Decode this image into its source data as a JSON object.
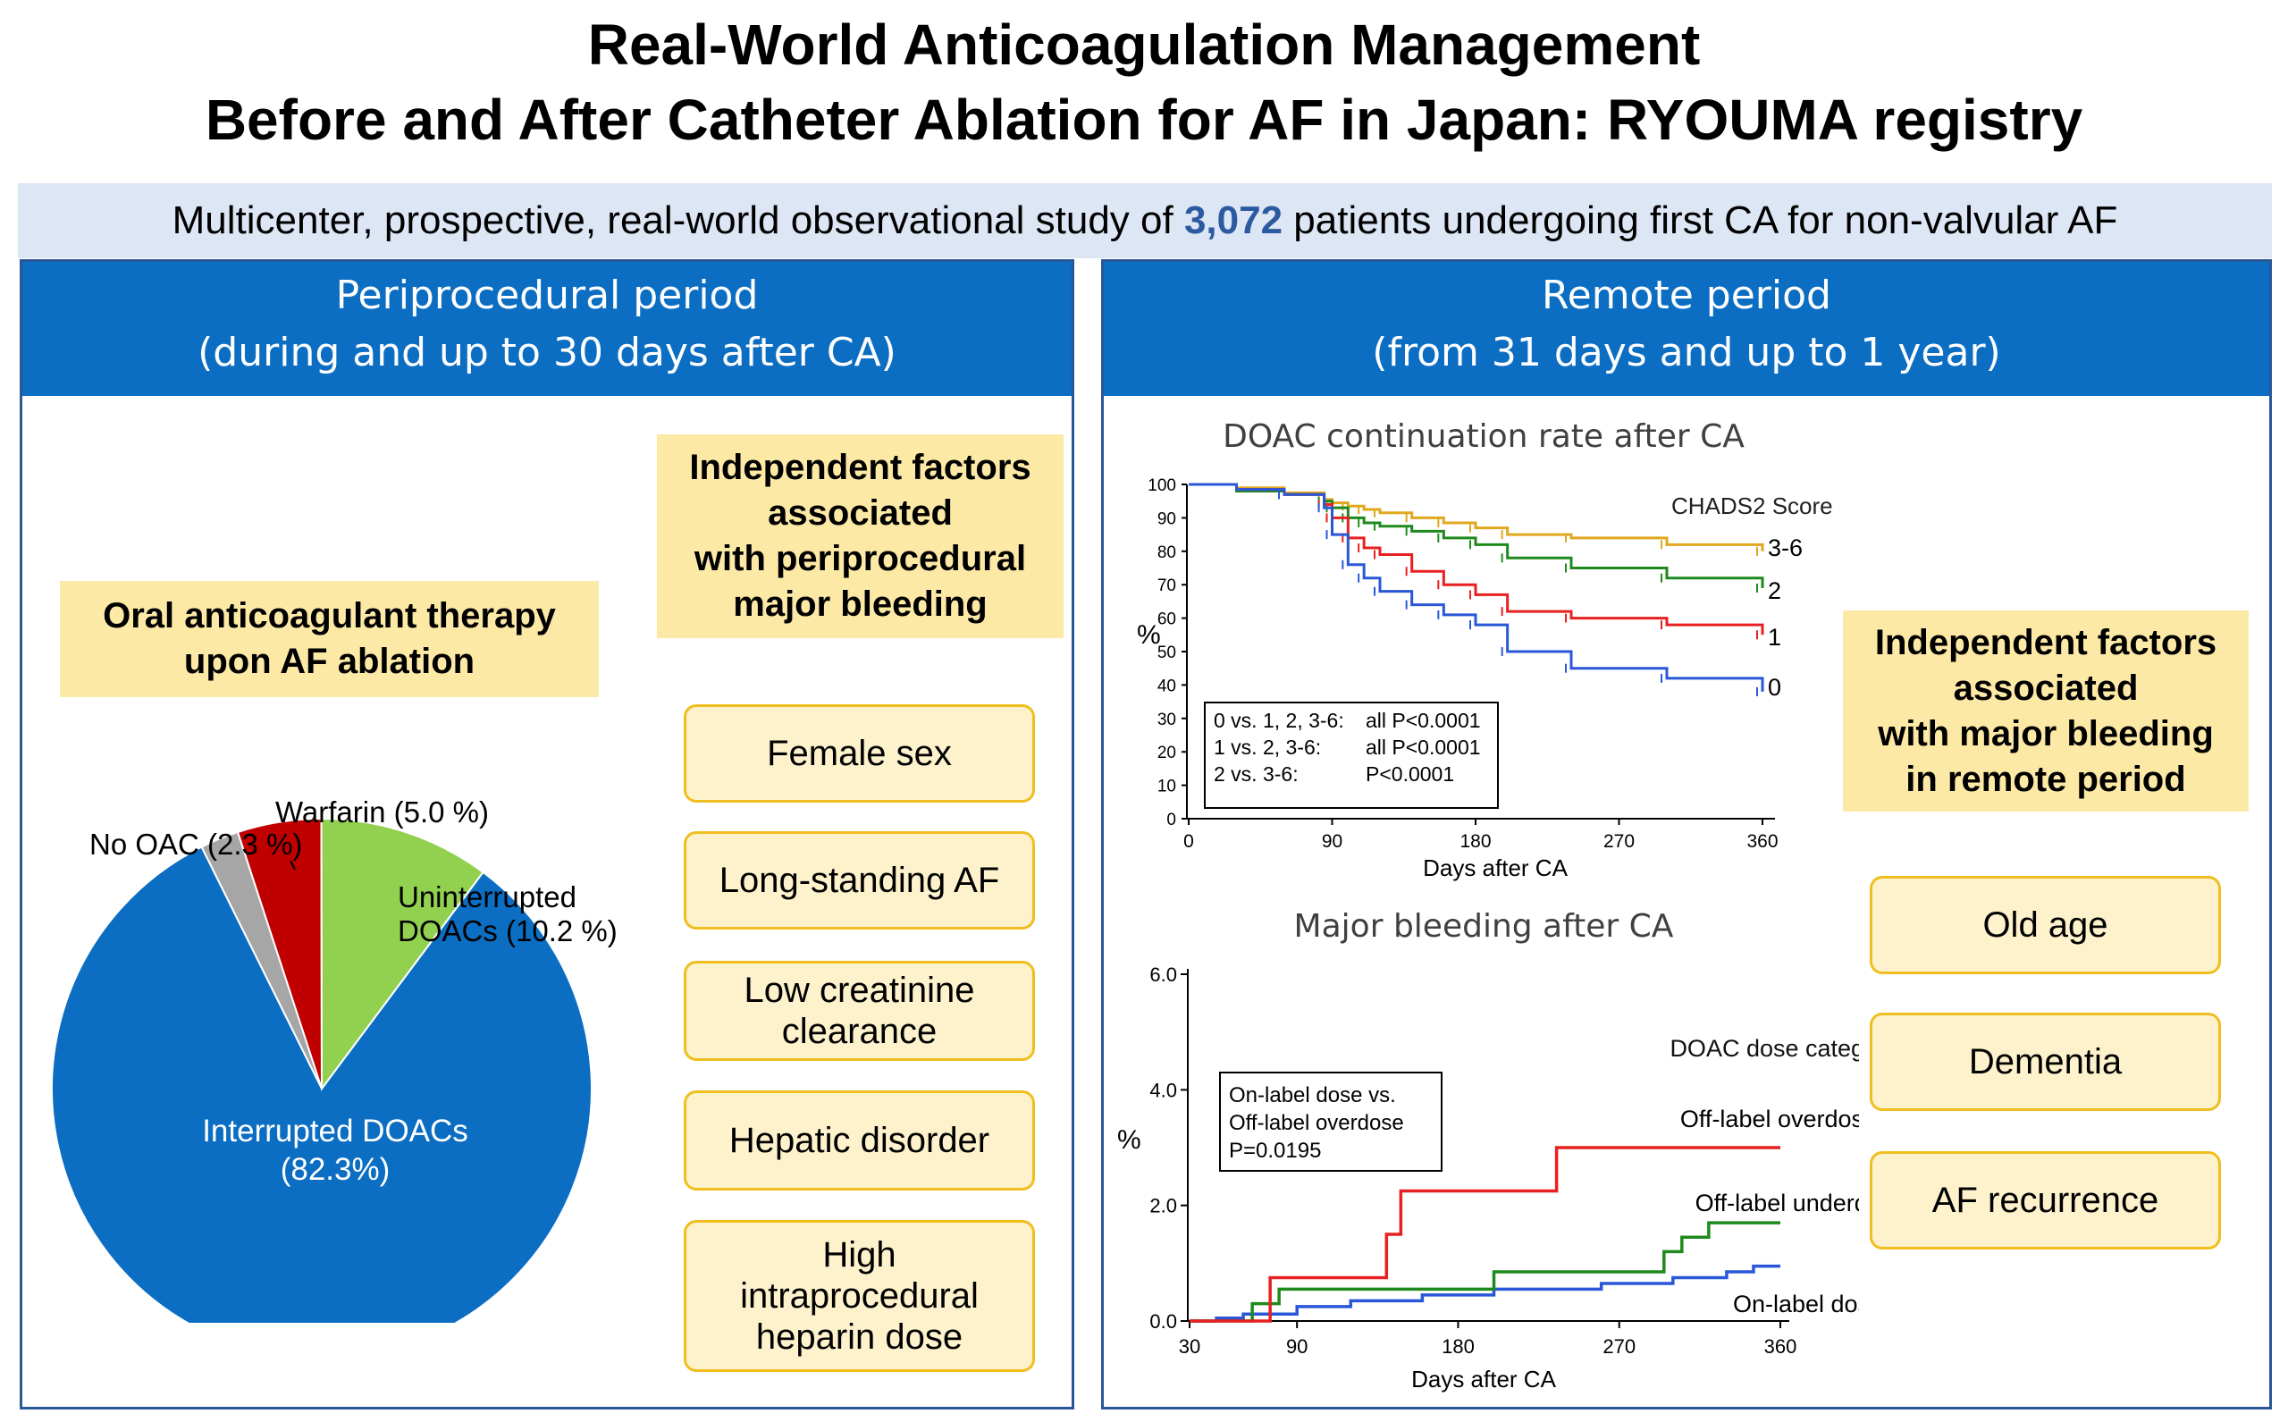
{
  "title": {
    "line1": "Real-World Anticoagulation Management",
    "line2": "Before and After Catheter Ablation for AF in Japan: RYOUMA registry"
  },
  "banner": {
    "pre": "Multicenter, prospective, real-world observational study of ",
    "highlight": "3,072",
    "post": " patients undergoing first CA for non-valvular AF"
  },
  "left_panel": {
    "heading_line1": "Periprocedural period",
    "heading_line2": "(during and up to 30 days after CA)",
    "oac_box": [
      "Oral anticoagulant therapy",
      "upon AF ablation"
    ],
    "factors_box": [
      "Independent factors",
      "associated",
      "with periprocedural",
      "major bleeding"
    ],
    "factors": [
      [
        "Female sex"
      ],
      [
        "Long-standing AF"
      ],
      [
        "Low creatinine",
        "clearance"
      ],
      [
        "Hepatic disorder"
      ],
      [
        "High",
        "intraprocedural",
        "heparin dose"
      ]
    ]
  },
  "right_panel": {
    "heading_line1": "Remote period",
    "heading_line2": "(from 31 days and up to 1 year)",
    "factors_box": [
      "Independent factors",
      "associated",
      "with major bleeding",
      "in remote period"
    ],
    "factors": [
      "Old age",
      "Dementia",
      "AF recurrence"
    ]
  },
  "chart_data": [
    {
      "type": "pie",
      "labels": [
        "Interrupted DOACs (82.3%)",
        "Uninterrupted DOACs (10.2 %)",
        "Warfarin (5.0 %)",
        "No OAC (2.3 %)"
      ],
      "values": [
        82.3,
        10.2,
        5.0,
        2.3
      ],
      "colors": [
        "#0b6ec3",
        "#92d050",
        "#c00000",
        "#a6a6a6"
      ],
      "label_text": {
        "interrupted": [
          "Interrupted DOACs",
          "(82.3%)"
        ],
        "uninterrupted": [
          "Uninterrupted",
          "DOACs (10.2 %)"
        ],
        "warfarin": "Warfarin (5.0 %)",
        "no_oac": "No OAC (2.3 %)"
      }
    },
    {
      "type": "line",
      "title": "DOAC continuation rate after CA",
      "xlabel": "Days after CA",
      "ylabel": "%",
      "xlim": [
        0,
        360
      ],
      "ylim": [
        0,
        100
      ],
      "xticks": [
        "0",
        "90",
        "180",
        "270",
        "360"
      ],
      "yticks": [
        "0",
        "10",
        "20",
        "30",
        "40",
        "50",
        "60",
        "70",
        "80",
        "90",
        "100"
      ],
      "legend_title": "CHADS2 Score",
      "x": [
        0,
        30,
        60,
        85,
        90,
        100,
        110,
        120,
        140,
        160,
        180,
        200,
        240,
        300,
        360
      ],
      "series": [
        {
          "name": "3-6",
          "color": "#e0a81e",
          "values": [
            100,
            99,
            97.5,
            95.5,
            94.5,
            93.5,
            92.5,
            91.5,
            90,
            88.5,
            87,
            85,
            84,
            82,
            80
          ]
        },
        {
          "name": "2",
          "color": "#1e8a1e",
          "values": [
            100,
            98,
            97,
            95,
            93,
            90,
            88.5,
            87.5,
            86,
            84,
            82,
            78,
            75,
            72,
            69
          ]
        },
        {
          "name": "1",
          "color": "#e82020",
          "values": [
            100,
            98.5,
            97,
            94,
            90,
            84,
            81,
            79,
            74,
            70,
            67,
            62,
            60,
            58,
            55
          ]
        },
        {
          "name": "0",
          "color": "#2a57d8",
          "values": [
            100,
            98.5,
            97,
            93,
            85,
            76,
            72,
            68,
            64,
            61,
            58,
            50,
            45,
            42,
            38
          ]
        }
      ],
      "stats": [
        [
          "0 vs. 1, 2, 3-6:",
          "all P<0.0001"
        ],
        [
          "1 vs. 2, 3-6:",
          "all P<0.0001"
        ],
        [
          "2 vs. 3-6:",
          "P<0.0001"
        ]
      ]
    },
    {
      "type": "line",
      "title": "Major bleeding after CA",
      "xlabel": "Days after CA",
      "ylabel": "%",
      "xlim": [
        30,
        360
      ],
      "ylim": [
        0,
        6
      ],
      "xticks": [
        "30",
        "90",
        "180",
        "270",
        "360"
      ],
      "yticks": [
        "0.0",
        "2.0",
        "4.0",
        "6.0"
      ],
      "legend_title": "DOAC dose category",
      "series": [
        {
          "name": "Off-label overdose",
          "color": "#e82020",
          "steps": [
            [
              30,
              0
            ],
            [
              75,
              0
            ],
            [
              75,
              0.75
            ],
            [
              140,
              0.75
            ],
            [
              140,
              1.5
            ],
            [
              148,
              1.5
            ],
            [
              148,
              2.25
            ],
            [
              235,
              2.25
            ],
            [
              235,
              3.0
            ],
            [
              360,
              3.0
            ]
          ]
        },
        {
          "name": "Off-label underdose",
          "color": "#1e8a1e",
          "steps": [
            [
              30,
              0
            ],
            [
              65,
              0
            ],
            [
              65,
              0.3
            ],
            [
              80,
              0.3
            ],
            [
              80,
              0.55
            ],
            [
              200,
              0.55
            ],
            [
              200,
              0.85
            ],
            [
              295,
              0.85
            ],
            [
              295,
              1.2
            ],
            [
              305,
              1.2
            ],
            [
              305,
              1.45
            ],
            [
              320,
              1.45
            ],
            [
              320,
              1.7
            ],
            [
              360,
              1.7
            ]
          ]
        },
        {
          "name": "On-label dose",
          "color": "#2a57d8",
          "steps": [
            [
              30,
              0
            ],
            [
              45,
              0
            ],
            [
              45,
              0.05
            ],
            [
              60,
              0.05
            ],
            [
              60,
              0.12
            ],
            [
              90,
              0.12
            ],
            [
              90,
              0.25
            ],
            [
              120,
              0.25
            ],
            [
              120,
              0.35
            ],
            [
              160,
              0.35
            ],
            [
              160,
              0.45
            ],
            [
              200,
              0.45
            ],
            [
              200,
              0.55
            ],
            [
              260,
              0.55
            ],
            [
              260,
              0.65
            ],
            [
              300,
              0.65
            ],
            [
              300,
              0.75
            ],
            [
              330,
              0.75
            ],
            [
              330,
              0.85
            ],
            [
              345,
              0.85
            ],
            [
              345,
              0.95
            ],
            [
              360,
              0.95
            ]
          ]
        }
      ],
      "stats": [
        "On-label dose vs.",
        "Off-label overdose",
        "P=0.0195"
      ]
    }
  ]
}
